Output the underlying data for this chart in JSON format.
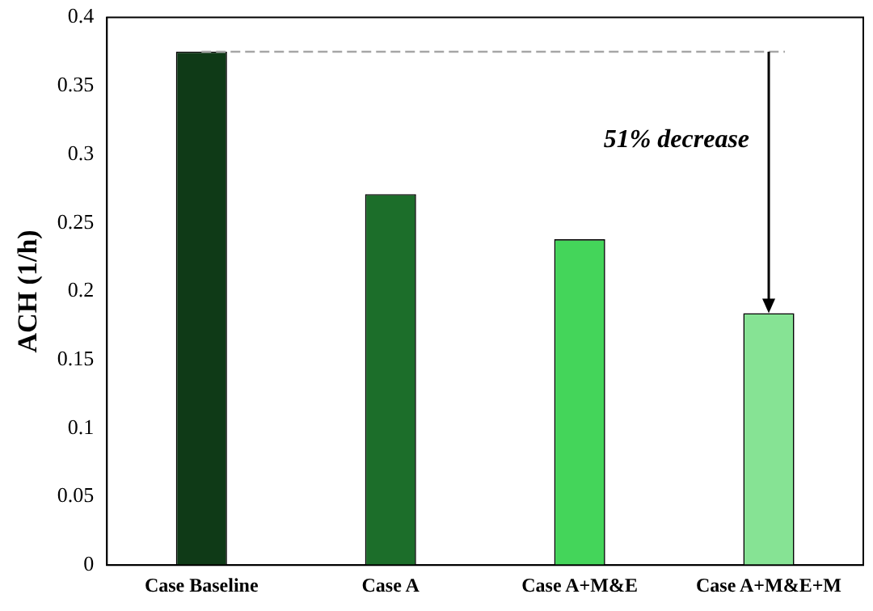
{
  "chart_data": {
    "type": "bar",
    "ylabel": "ACH (1/h)",
    "categories": [
      "Case Baseline",
      "Case A",
      "Case A+M&E",
      "Case A+M&E+M"
    ],
    "values": [
      0.375,
      0.271,
      0.238,
      0.184
    ],
    "colors": [
      "#0f3a17",
      "#1c6e2a",
      "#44d55a",
      "#86e394"
    ],
    "ylim": [
      0,
      0.4
    ],
    "yticks": [
      0,
      0.05,
      0.1,
      0.15,
      0.2,
      0.25,
      0.3,
      0.35,
      0.4
    ],
    "grid": false,
    "legend": false,
    "ref_lines": [
      {
        "axis": "y",
        "value": 0.375,
        "color": "#a6a6a6",
        "line_style": "dashed"
      }
    ],
    "annotations": [
      "51% decrease"
    ]
  }
}
